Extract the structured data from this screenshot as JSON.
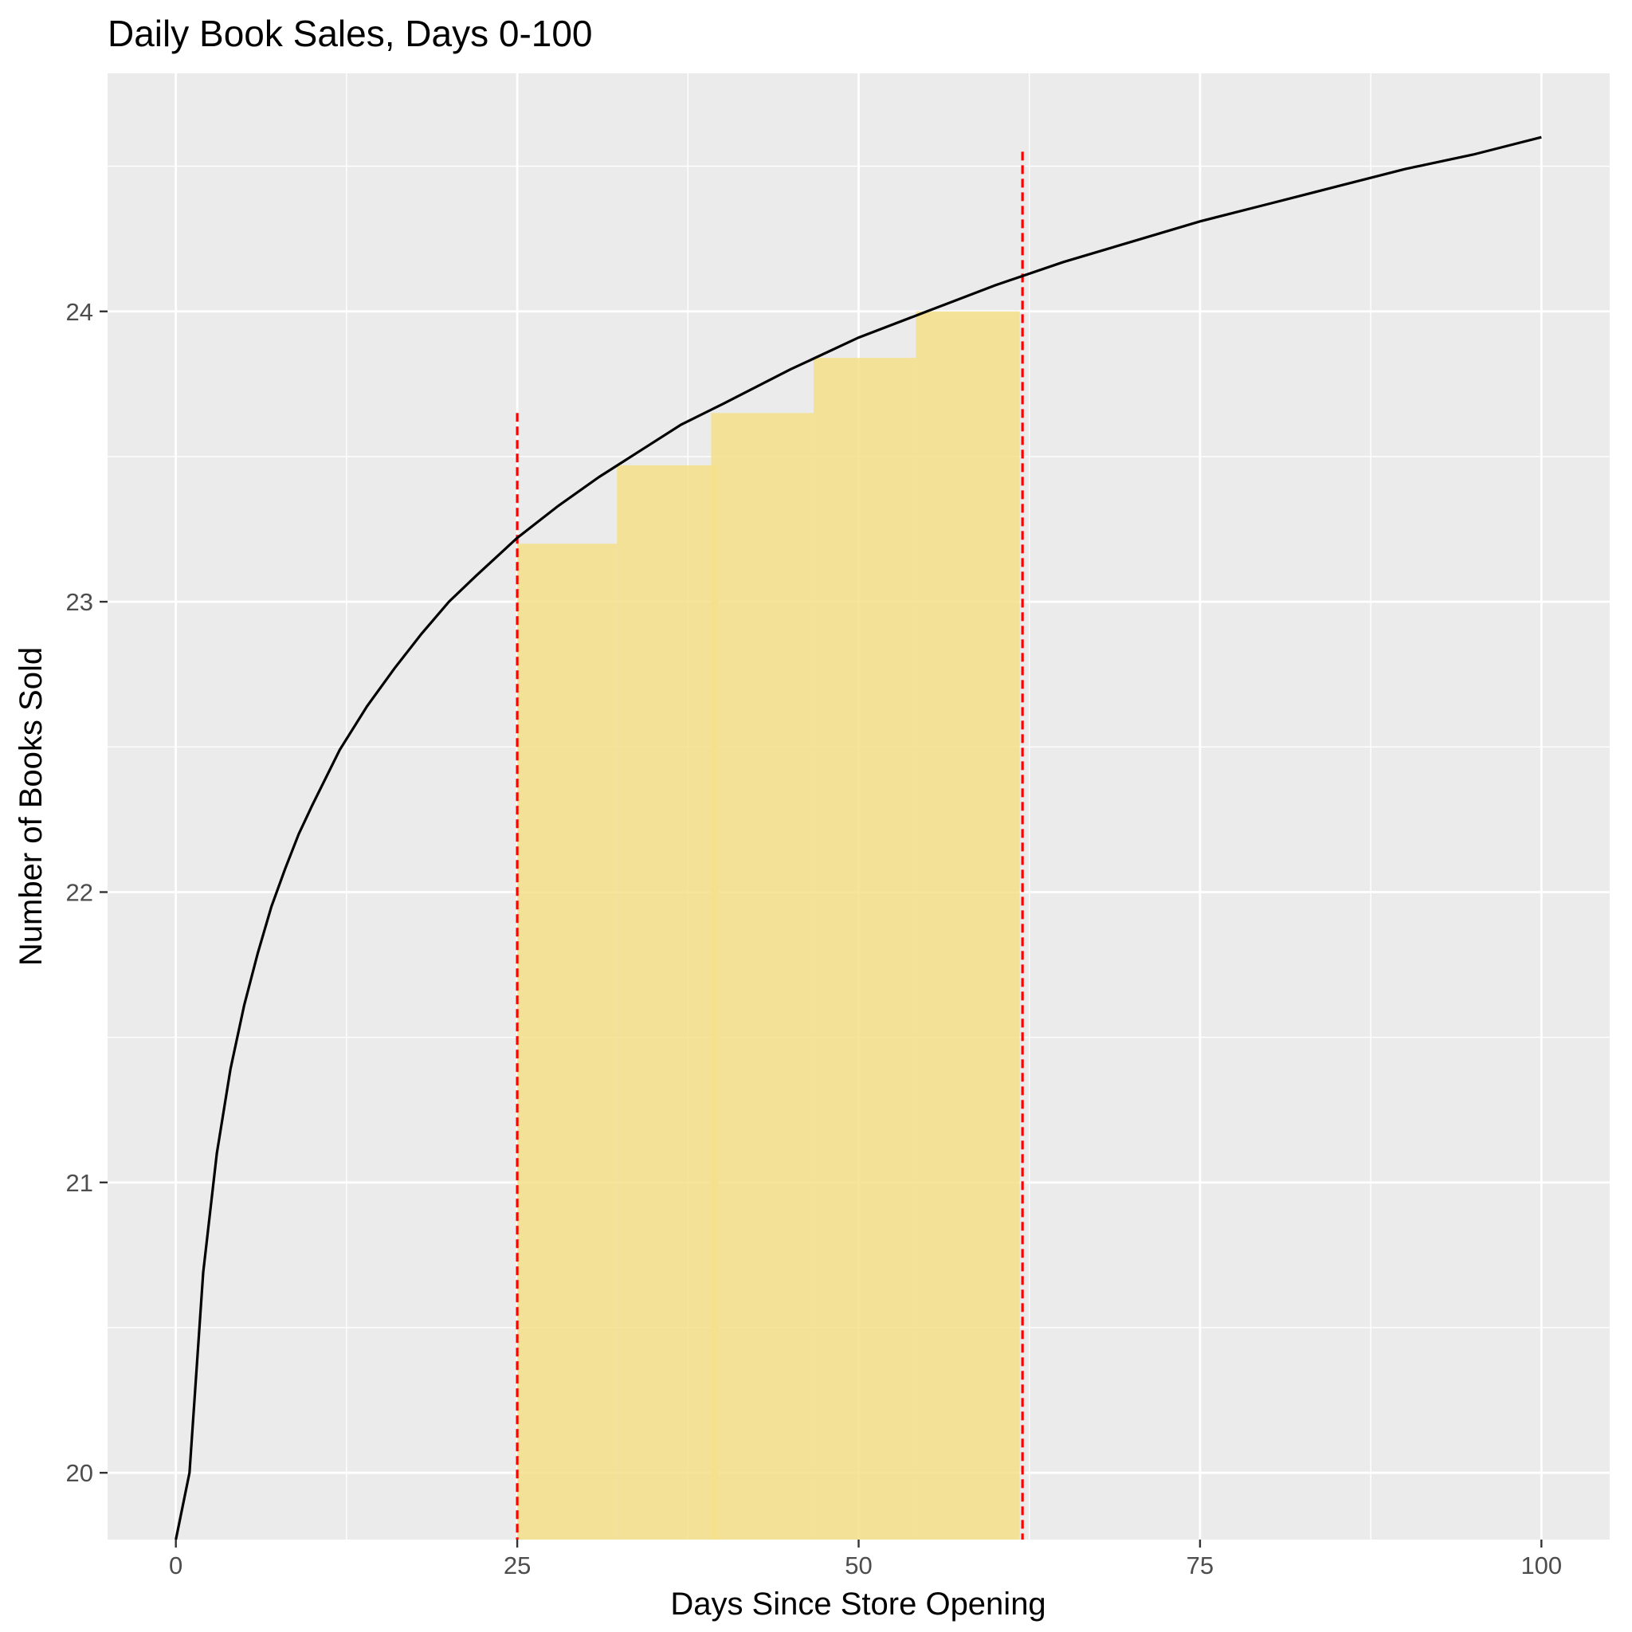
{
  "chart_data": {
    "type": "line",
    "title": "Daily Book Sales, Days 0-100",
    "xlabel": "Days Since Store Opening",
    "ylabel": "Number of Books Sold",
    "xlim": [
      -5,
      105
    ],
    "ylim": [
      19.77,
      24.82
    ],
    "x_ticks": [
      0,
      25,
      50,
      75,
      100
    ],
    "y_ticks": [
      20,
      21,
      22,
      23,
      24
    ],
    "grid": true,
    "curve": {
      "x": [
        0,
        1,
        2,
        3,
        4,
        5,
        6,
        7,
        8,
        9,
        10,
        12,
        14,
        16,
        18,
        20,
        22,
        25,
        28,
        31,
        34,
        37,
        40,
        45,
        50,
        55,
        60,
        65,
        70,
        75,
        80,
        85,
        90,
        95,
        100
      ],
      "y": [
        19.77,
        20.0,
        20.69,
        21.1,
        21.39,
        21.61,
        21.79,
        21.95,
        22.08,
        22.2,
        22.3,
        22.49,
        22.64,
        22.77,
        22.89,
        23.0,
        23.09,
        23.22,
        23.33,
        23.43,
        23.52,
        23.61,
        23.68,
        23.8,
        23.91,
        24.0,
        24.09,
        24.17,
        24.24,
        24.31,
        24.37,
        24.43,
        24.49,
        24.54,
        24.6
      ]
    },
    "bars": [
      {
        "x0": 25.0,
        "x1": 32.3,
        "top": 23.2
      },
      {
        "x0": 32.3,
        "x1": 39.7,
        "top": 23.47
      },
      {
        "x0": 39.2,
        "x1": 46.7,
        "top": 23.65
      },
      {
        "x0": 46.7,
        "x1": 54.2,
        "top": 23.84
      },
      {
        "x0": 54.2,
        "x1": 61.8,
        "top": 24.0
      }
    ],
    "bar_fill": "#f5df8a",
    "curve_color": "#000000",
    "vlines": [
      {
        "x": 25.0,
        "y_top": 23.65
      },
      {
        "x": 62.0,
        "y_top": 24.55
      }
    ],
    "vline_color": "#ff0000",
    "panel_background": "#ebebeb",
    "grid_color": "#ffffff"
  }
}
